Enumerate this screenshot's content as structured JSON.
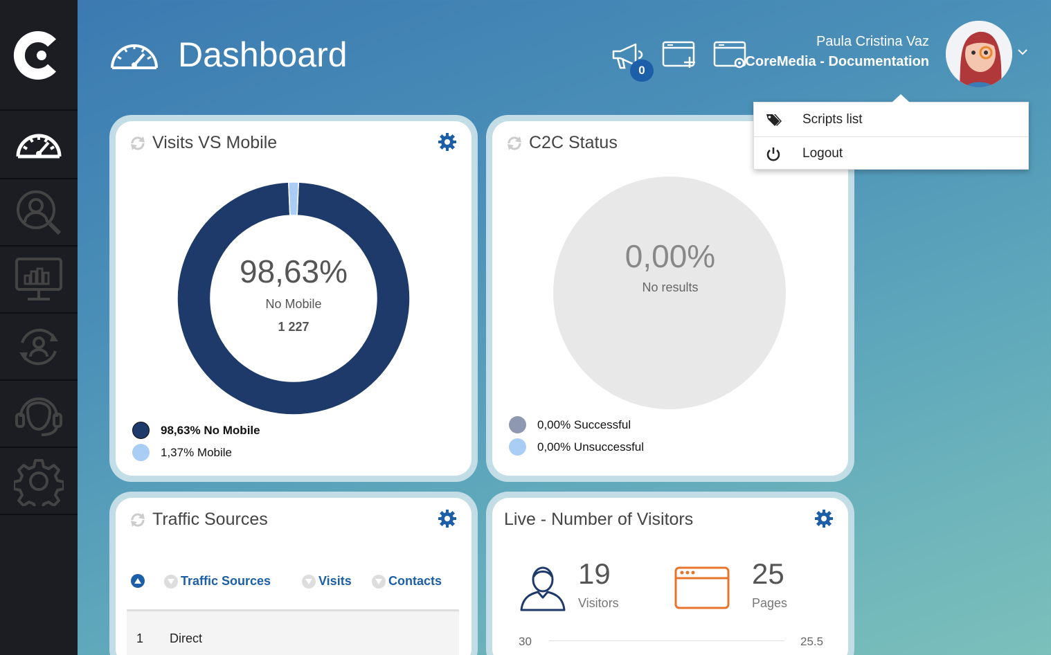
{
  "header": {
    "title": "Dashboard",
    "notifications_count": "0",
    "user_name": "Paula Cristina Vaz",
    "user_org": "CoreMedia - Documentation"
  },
  "dropdown": {
    "items": [
      {
        "label": "Scripts list",
        "icon": "tags-icon"
      },
      {
        "label": "Logout",
        "icon": "power-icon"
      }
    ]
  },
  "sidebar": {
    "items": [
      {
        "icon": "speedometer-icon"
      },
      {
        "icon": "user-search-icon"
      },
      {
        "icon": "monitor-chart-icon"
      },
      {
        "icon": "user-sync-icon"
      },
      {
        "icon": "headset-icon"
      },
      {
        "icon": "gear-icon"
      }
    ]
  },
  "cards": {
    "visits_mobile": {
      "title": "Visits VS Mobile",
      "center_value": "98,63%",
      "center_label": "No Mobile",
      "center_count": "1 227",
      "legend": [
        {
          "label": "98,63% No Mobile",
          "color": "#1e3a6b"
        },
        {
          "label": "1,37% Mobile",
          "color": "#a9cdf5"
        }
      ]
    },
    "c2c_status": {
      "title": "C2C Status",
      "center_value": "0,00%",
      "center_label": "No results",
      "legend": [
        {
          "label": "0,00% Successful",
          "color": "#8e99b1"
        },
        {
          "label": "0,00% Unsuccessful",
          "color": "#a9cdf5"
        }
      ]
    },
    "traffic_sources": {
      "title": "Traffic Sources",
      "columns": [
        "Traffic Sources",
        "Visits",
        "Contacts"
      ],
      "rows": [
        {
          "rank": "1",
          "source": "Direct"
        }
      ]
    },
    "live_visitors": {
      "title": "Live - Number of Visitors",
      "visitors_value": "19",
      "visitors_label": "Visitors",
      "pages_value": "25",
      "pages_label": "Pages",
      "axis_left": "30",
      "axis_right": "25.5"
    }
  },
  "chart_data": {
    "type": "pie",
    "title": "Visits VS Mobile",
    "categories": [
      "No Mobile",
      "Mobile"
    ],
    "values": [
      98.63,
      1.37
    ]
  },
  "colors": {
    "accent": "#1c5fa8",
    "no_mobile": "#1e3a6b",
    "mobile": "#a9cdf5",
    "pages_icon": "#e8742c"
  }
}
